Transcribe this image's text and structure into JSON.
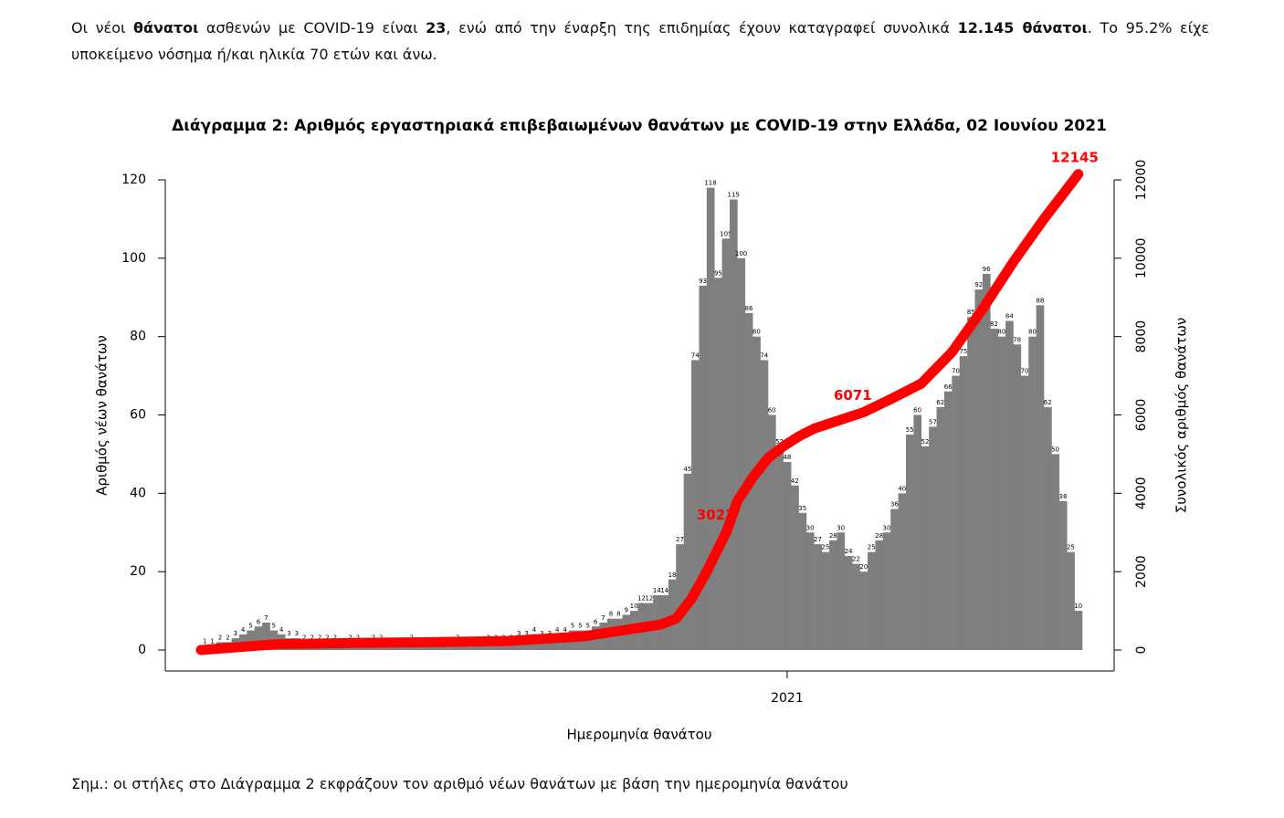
{
  "intro": [
    "Οι νέοι ",
    "θάνατοι",
    " ασθενών με COVID-19 είναι ",
    "23",
    ", ενώ από την έναρξη της επιδημίας έχουν καταγραφεί συνολικά ",
    "12.145 θάνατοι",
    ".  Το 95.2% είχε υποκείμενο νόσημα ή/και ηλικία 70 ετών και άνω."
  ],
  "chart_data": {
    "type": "bar",
    "title": "Διάγραμμα 2: Αριθμός εργαστηριακά επιβεβαιωμένων θανάτων με COVID-19 στην Ελλάδα, 02 Ιουνίου 2021",
    "ylabel": "Αριθμός νέων θανάτων",
    "y2label": "Συνολικός αριθμός θανάτων",
    "xlabel": "Ημερομηνία θανάτου",
    "color": "#7f7f7f",
    "values": [
      1,
      1,
      2,
      2,
      3,
      4,
      5,
      6,
      7,
      5,
      4,
      3,
      3,
      2,
      2,
      2,
      2,
      2,
      1,
      2,
      2,
      1,
      2,
      2,
      1,
      1,
      1,
      2,
      1,
      1,
      1,
      1,
      1,
      2,
      1,
      1,
      1,
      2,
      2,
      2,
      2,
      3,
      3,
      4,
      3,
      3,
      4,
      4,
      5,
      5,
      5,
      6,
      7,
      8,
      8,
      9,
      10,
      12,
      12,
      14,
      14,
      18,
      27,
      45,
      74,
      93,
      118,
      95,
      105,
      115,
      100,
      86,
      80,
      74,
      60,
      52,
      48,
      42,
      35,
      30,
      27,
      25,
      28,
      30,
      24,
      22,
      20,
      25,
      28,
      30,
      36,
      40,
      55,
      60,
      52,
      57,
      62,
      66,
      70,
      75,
      85,
      92,
      96,
      82,
      80,
      84,
      78,
      70,
      80,
      88,
      62,
      50,
      38,
      25,
      10
    ],
    "line": {
      "color": "#ff0000",
      "axis": "y2",
      "x": [
        0,
        10,
        20,
        30,
        40,
        50,
        55,
        60,
        62,
        64,
        66,
        68.6,
        70,
        72,
        74,
        76,
        78,
        80,
        86.5,
        90,
        94,
        98,
        102,
        106,
        110,
        114.5
      ],
      "values": [
        0,
        150,
        180,
        200,
        230,
        350,
        500,
        650,
        800,
        1300,
        2000,
        3023,
        3800,
        4400,
        4900,
        5200,
        5450,
        5650,
        6071,
        6400,
        6800,
        7600,
        8700,
        9900,
        11000,
        12145
      ],
      "value_labels": [
        null,
        null,
        null,
        null,
        null,
        null,
        null,
        null,
        null,
        null,
        null,
        "3023",
        null,
        null,
        null,
        null,
        null,
        null,
        "6071",
        null,
        null,
        null,
        null,
        null,
        null,
        "12145"
      ]
    },
    "xlim": [
      0,
      115
    ],
    "xticks": [
      {
        "value": 76.5,
        "label": "2021"
      }
    ],
    "ylim": [
      0,
      120
    ],
    "yticks": [
      0,
      20,
      40,
      60,
      80,
      100,
      120
    ],
    "y2lim": [
      0,
      12000
    ],
    "y2ticks": [
      0,
      2000,
      4000,
      6000,
      8000,
      10000,
      12000
    ]
  },
  "note": "Σημ.: οι στήλες στο Διάγραμμα 2 εκφράζουν τον αριθμό νέων θανάτων με βάση την ημερομηνία θανάτου"
}
